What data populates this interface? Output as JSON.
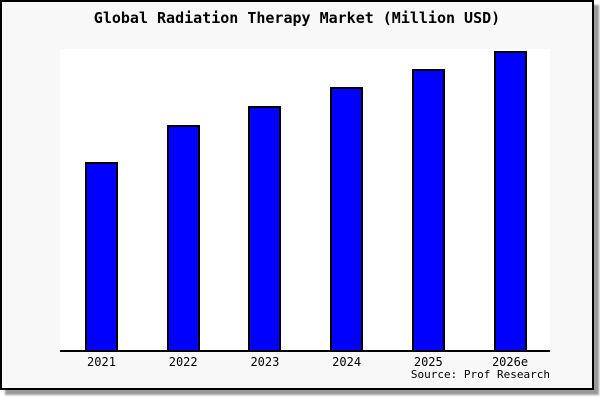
{
  "window": {
    "background_color": "#f8f8f8",
    "border_color": "#000000",
    "shadow_color": "#999999",
    "plot_background_color": "#ffffff"
  },
  "chart": {
    "title": "Global Radiation Therapy Market (Million USD)",
    "source": "Source: Prof Research"
  },
  "chart_data": {
    "type": "bar",
    "title": "Global Radiation Therapy Market (Million USD)",
    "categories": [
      "2021",
      "2022",
      "2023",
      "2024",
      "2025",
      "2026e"
    ],
    "values": [
      188,
      225,
      244,
      263,
      281,
      299
    ],
    "value_note": "No y-axis ticks, labels or gridlines are shown in the chart; values are relative bar heights in pixels (plot height 301px). Normalized to 2026e=100: 62.9, 75.3, 81.6, 88.0, 94.0, 100.",
    "xlabel": "",
    "ylabel": "",
    "legend": "none",
    "grid": false,
    "bar_color": "#0000ff",
    "bar_border_color": "#000000",
    "axis_line_color": "#000000",
    "source_label": "Source: Prof Research"
  }
}
